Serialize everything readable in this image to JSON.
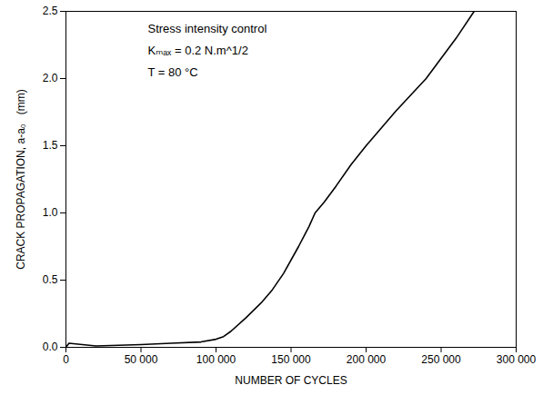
{
  "chart_data": {
    "type": "line",
    "x_label": "NUMBER OF CYCLES",
    "y_label": "CRACK PROPAGATION, a-a₀   (mm)",
    "annotations": [
      "Stress intensity control",
      "Kₘₐₓ = 0.2 N.m^1/2",
      "T = 80 °C"
    ],
    "x": [
      0,
      2000,
      20000,
      50000,
      70000,
      90000,
      100000,
      105000,
      110000,
      120000,
      130000,
      137000,
      145000,
      155000,
      162000,
      166000,
      172000,
      180000,
      190000,
      200000,
      210000,
      220000,
      230000,
      240000,
      250000,
      260000,
      272000
    ],
    "values": [
      0,
      0.03,
      0.01,
      0.02,
      0.03,
      0.04,
      0.06,
      0.08,
      0.12,
      0.22,
      0.33,
      0.42,
      0.55,
      0.75,
      0.9,
      1.0,
      1.08,
      1.2,
      1.36,
      1.5,
      1.63,
      1.76,
      1.88,
      2.0,
      2.15,
      2.3,
      2.5
    ],
    "color": "#000000",
    "xlim": [
      0,
      300000
    ],
    "ylim": [
      0,
      2.5
    ],
    "xticks": [
      0,
      {
        "value": 50000,
        "label": "50 000"
      },
      {
        "value": 100000,
        "label": "100 000"
      },
      {
        "value": 150000,
        "label": "150 000"
      },
      {
        "value": 200000,
        "label": "200 000"
      },
      {
        "value": 250000,
        "label": "250 000"
      },
      {
        "value": 300000,
        "label": "300 000"
      }
    ],
    "yticks": [
      {
        "value": 0,
        "label": "0.0"
      },
      0.5,
      {
        "value": 1,
        "label": "1.0"
      },
      1.5,
      {
        "value": 2,
        "label": "2.0"
      },
      2.5
    ],
    "grid": false
  }
}
